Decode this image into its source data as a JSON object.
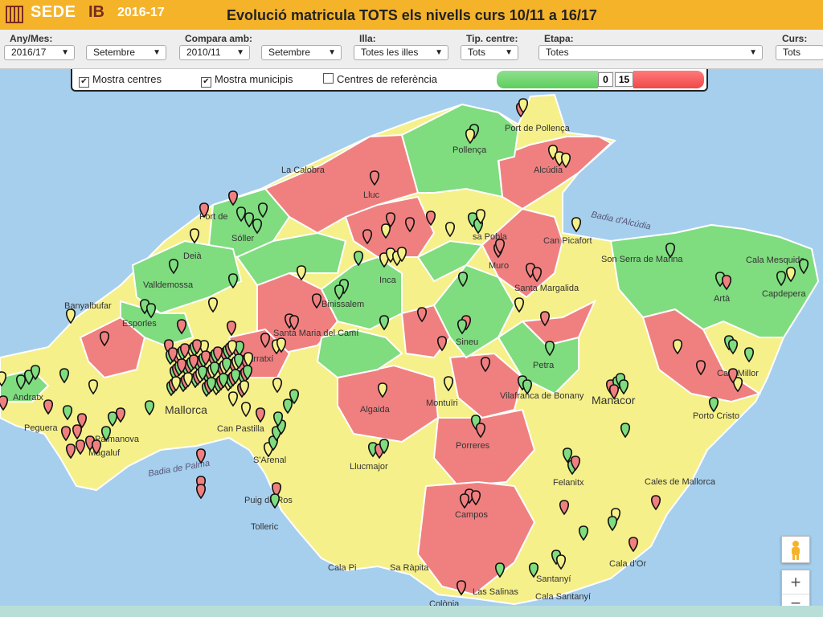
{
  "header": {
    "logo_text": "SEDE",
    "logo_ib": "IB",
    "year": "2016-17",
    "title": "Evolució matricula TOTS els nivells curs 10/11 a 16/17"
  },
  "filters": [
    {
      "label": "Any/Mes:",
      "value": "2016/17"
    },
    {
      "label": "",
      "value": "Setembre"
    },
    {
      "label": "Compara amb:",
      "value": "2010/11"
    },
    {
      "label": "",
      "value": "Setembre"
    },
    {
      "label": "Illa:",
      "value": "Totes les illes"
    },
    {
      "label": "Tip. centre:",
      "value": "Tots"
    },
    {
      "label": "Etapa:",
      "value": "Totes"
    },
    {
      "label": "Curs:",
      "value": "Tots"
    }
  ],
  "controls": {
    "show_centres": "Mostra centres",
    "show_municipis": "Mostra municipis",
    "reference_centres": "Centres de referència",
    "range_min": "0",
    "range_max": "15"
  },
  "colors": {
    "positive": "#7fdc7f",
    "neutral": "#f6f08a",
    "negative": "#f08080",
    "sea": "#a6cfee",
    "header": "#f5b32a"
  },
  "map_labels": {
    "pollenca_port": "Port de Pollença",
    "pollenca": "Pollença",
    "alcudia": "Alcúdia",
    "calobra": "La Calobra",
    "lluc": "Lluc",
    "badia_alcudia": "Badia d'Alcúdia",
    "port_soller": "Port de",
    "soller": "Sóller",
    "deia": "Deià",
    "valldemossa": "Valldemossa",
    "banyalbufar": "Banyalbufar",
    "esporles": "Esporles",
    "inca": "Inca",
    "binissalem": "Binissalem",
    "santa_maria": "Santa Maria del Camí",
    "marratxi": "Marratxí",
    "sa_pobla": "sa Pobla",
    "muro": "Muro",
    "can_picafort": "Can Picafort",
    "son_serra": "Son Serra de Marina",
    "cala_mesquida": "Cala Mesquida",
    "arta": "Artà",
    "capdepera": "Capdepera",
    "santa_margalida": "Santa Margalida",
    "sineu": "Sineu",
    "petra": "Petra",
    "cala_millor": "Cala Millor",
    "andratx": "Andratx",
    "peguera": "Peguera",
    "palmanova": "Palmanova",
    "magaluf": "Magaluf",
    "palma": "Mallorca",
    "can_pastilla": "Can Pastilla",
    "algaida": "Algaida",
    "montuiri": "Montuïri",
    "vilafranca": "Vilafranca de Bonany",
    "manacor": "Manacor",
    "porto_cristo": "Porto Cristo",
    "badia_palma": "Badia de Palma",
    "arenal": "S'Arenal",
    "llucmajor": "Llucmajor",
    "porreres": "Porreres",
    "felanitx": "Felanitx",
    "cales_mallorca": "Cales de Mallorca",
    "puigderros": "Puig de Ros",
    "tolleric": "Tolleric",
    "campos": "Campos",
    "cala_pi": "Cala Pi",
    "sa_rapita": "Sa Ràpita",
    "santanyi": "Santanyí",
    "cala_dor": "Cala d'Or",
    "las_salinas": "Las Salinas",
    "cala_santanyi": "Cala Santanyí",
    "colonia": "Colònia"
  }
}
